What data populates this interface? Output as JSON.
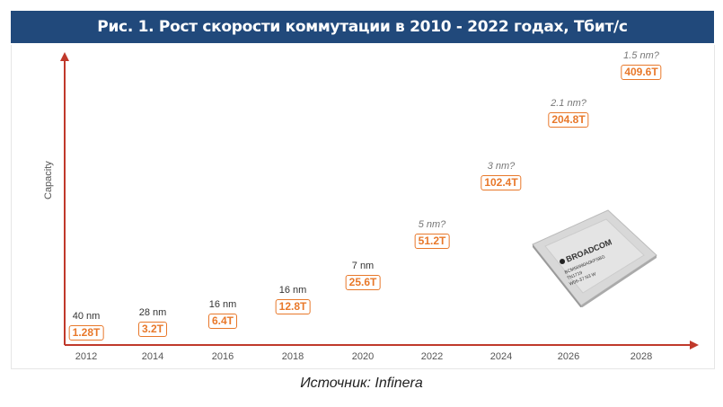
{
  "header": {
    "title": "Рис. 1. Рост скорости коммутации в 2010 - 2022 годах, Тбит/с"
  },
  "chart_data": {
    "type": "scatter",
    "title": "Рис. 1. Рост скорости коммутации в 2010 - 2022 годах, Тбит/с",
    "xlabel": "",
    "ylabel": "Capacity",
    "categories": [
      "2012",
      "2014",
      "2016",
      "2018",
      "2020",
      "2022",
      "2024",
      "2026",
      "2028"
    ],
    "values": [
      1.28,
      3.2,
      6.4,
      12.8,
      25.6,
      51.2,
      102.4,
      204.8,
      409.6
    ],
    "value_labels": [
      "1.28T",
      "3.2T",
      "6.4T",
      "12.8T",
      "25.6T",
      "51.2T",
      "102.4T",
      "204.8T",
      "409.6T"
    ],
    "node_labels": [
      "40 nm",
      "28 nm",
      "16 nm",
      "16 nm",
      "7 nm",
      "5 nm?",
      "3 nm?",
      "2.1 nm?",
      "1.5 nm?"
    ],
    "predicted": [
      false,
      false,
      false,
      false,
      false,
      true,
      true,
      true,
      true
    ],
    "colors": {
      "axis": "#c0392b",
      "label": "#e8782a",
      "header": "#21497b"
    }
  },
  "chip": {
    "brand": "BROADCOM",
    "line1": "BCM56990A0KFSBG",
    "line2": "TN1719",
    "line3": "W06-37  N3  W"
  },
  "source": "Источник:  Infinera"
}
